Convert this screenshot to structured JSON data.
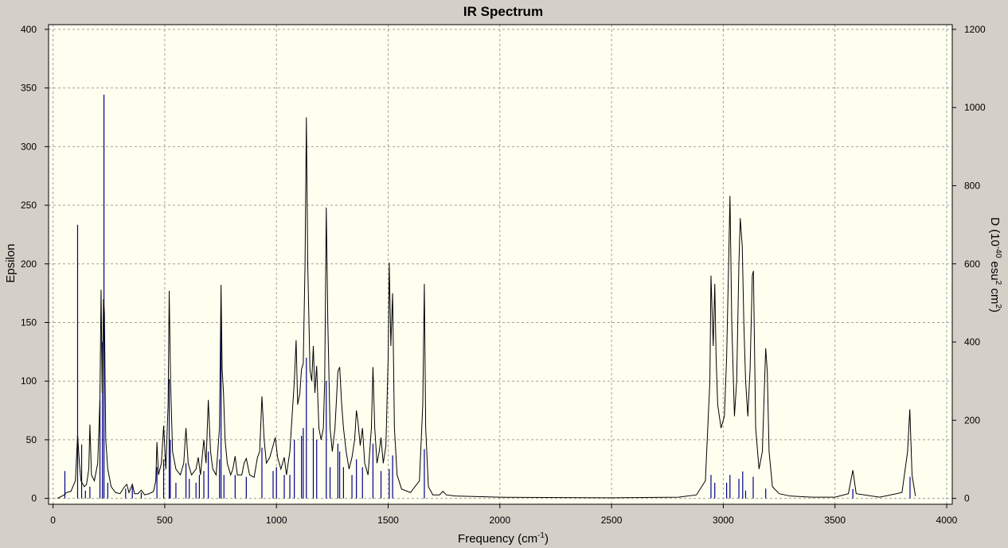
{
  "chart_data": {
    "type": "line",
    "title": "IR Spectrum",
    "x_label": [
      "Frequency (cm",
      "-1",
      ")"
    ],
    "y_label": "Epsilon",
    "y2_label": [
      "D (10",
      "-40",
      " esu",
      "2",
      " cm",
      "2",
      ")"
    ],
    "xlim": [
      -20,
      4025
    ],
    "ylim": [
      -5,
      404
    ],
    "y2lim": [
      -15,
      1212
    ],
    "xticks": [
      0,
      500,
      1000,
      1500,
      2000,
      2500,
      3000,
      3500,
      4000
    ],
    "yticks": [
      0,
      50,
      100,
      150,
      200,
      250,
      300,
      350,
      400
    ],
    "y2ticks": [
      0,
      200,
      400,
      600,
      800,
      1000,
      1200
    ],
    "grid": true,
    "background": "#fffff0",
    "series": [
      {
        "type": "line",
        "color": "#000000",
        "x": [
          20,
          50,
          60,
          80,
          100,
          110,
          118,
          125,
          140,
          150,
          160,
          165,
          172,
          185,
          200,
          210,
          215,
          220,
          226,
          230,
          236,
          245,
          260,
          280,
          300,
          320,
          330,
          340,
          355,
          365,
          380,
          395,
          410,
          430,
          450,
          460,
          465,
          472,
          485,
          495,
          505,
          515,
          520,
          526,
          535,
          550,
          570,
          585,
          595,
          605,
          620,
          640,
          650,
          660,
          675,
          685,
          695,
          705,
          715,
          730,
          745,
          752,
          757,
          763,
          770,
          780,
          795,
          805,
          815,
          825,
          845,
          855,
          865,
          880,
          900,
          915,
          925,
          935,
          945,
          955,
          970,
          985,
          995,
          1005,
          1020,
          1035,
          1045,
          1060,
          1070,
          1080,
          1088,
          1095,
          1105,
          1112,
          1120,
          1128,
          1134,
          1140,
          1150,
          1158,
          1165,
          1172,
          1180,
          1190,
          1200,
          1210,
          1216,
          1223,
          1230,
          1240,
          1250,
          1262,
          1275,
          1283,
          1292,
          1300,
          1312,
          1325,
          1338,
          1350,
          1358,
          1365,
          1375,
          1385,
          1395,
          1410,
          1425,
          1432,
          1440,
          1450,
          1460,
          1468,
          1478,
          1490,
          1500,
          1505,
          1512,
          1520,
          1528,
          1540,
          1560,
          1600,
          1640,
          1655,
          1662,
          1668,
          1680,
          1700,
          1730,
          1745,
          1760,
          1800,
          2000,
          2500,
          2800,
          2880,
          2920,
          2940,
          2945,
          2955,
          2962,
          2968,
          2975,
          2990,
          3005,
          3015,
          3025,
          3030,
          3038,
          3050,
          3060,
          3070,
          3076,
          3085,
          3092,
          3100,
          3110,
          3120,
          3130,
          3135,
          3145,
          3160,
          3175,
          3185,
          3190,
          3197,
          3205,
          3220,
          3250,
          3300,
          3400,
          3500,
          3560,
          3580,
          3595,
          3700,
          3800,
          3825,
          3835,
          3845,
          3860
        ],
        "values": [
          0,
          3,
          5,
          6,
          15,
          54,
          30,
          15,
          10,
          12,
          25,
          63,
          20,
          15,
          30,
          85,
          178,
          90,
          170,
          158,
          50,
          25,
          10,
          5,
          4,
          10,
          12,
          5,
          12,
          4,
          4,
          7,
          3,
          4,
          6,
          15,
          48,
          20,
          30,
          62,
          25,
          80,
          177,
          100,
          40,
          25,
          20,
          30,
          60,
          30,
          20,
          25,
          35,
          20,
          50,
          30,
          84,
          40,
          25,
          20,
          60,
          182,
          110,
          90,
          50,
          30,
          20,
          25,
          36,
          20,
          20,
          30,
          34,
          20,
          18,
          35,
          40,
          87,
          50,
          30,
          35,
          45,
          52,
          35,
          25,
          35,
          20,
          40,
          70,
          100,
          135,
          80,
          90,
          110,
          115,
          200,
          325,
          200,
          110,
          100,
          130,
          90,
          113,
          60,
          50,
          60,
          100,
          248,
          150,
          60,
          40,
          60,
          108,
          112,
          80,
          60,
          40,
          25,
          35,
          50,
          75,
          65,
          45,
          60,
          30,
          20,
          60,
          112,
          60,
          30,
          40,
          52,
          30,
          45,
          120,
          201,
          130,
          175,
          60,
          20,
          8,
          5,
          15,
          80,
          183,
          60,
          10,
          3,
          3,
          6,
          3,
          2,
          1,
          0.5,
          1,
          3,
          15,
          100,
          190,
          130,
          183,
          120,
          80,
          60,
          70,
          120,
          210,
          258,
          150,
          70,
          100,
          200,
          239,
          215,
          150,
          100,
          70,
          110,
          190,
          194,
          60,
          25,
          40,
          100,
          128,
          108,
          40,
          10,
          4,
          2,
          1,
          1,
          4,
          24,
          4,
          1,
          5,
          40,
          76,
          20,
          2
        ]
      },
      {
        "type": "stick",
        "axis": "y2",
        "color": "#00008b",
        "x": [
          53,
          110,
          128,
          145,
          165,
          210,
          221,
          228,
          245,
          325,
          355,
          395,
          465,
          495,
          520,
          525,
          550,
          595,
          610,
          640,
          655,
          675,
          695,
          745,
          752,
          765,
          815,
          865,
          935,
          985,
          1000,
          1035,
          1060,
          1080,
          1112,
          1120,
          1134,
          1165,
          1180,
          1223,
          1240,
          1275,
          1283,
          1300,
          1338,
          1358,
          1385,
          1432,
          1468,
          1505,
          1520,
          1662,
          2945,
          2962,
          3015,
          3030,
          3070,
          3087,
          3100,
          3134,
          3190,
          3580,
          3836
        ],
        "values": [
          70,
          700,
          138,
          20,
          30,
          250,
          400,
          1033,
          40,
          25,
          30,
          15,
          80,
          100,
          305,
          150,
          40,
          90,
          50,
          40,
          60,
          70,
          120,
          100,
          472,
          60,
          60,
          55,
          130,
          70,
          80,
          60,
          60,
          150,
          160,
          180,
          360,
          180,
          150,
          300,
          80,
          140,
          120,
          80,
          60,
          100,
          80,
          140,
          70,
          75,
          110,
          126,
          60,
          40,
          40,
          60,
          50,
          69,
          20,
          55,
          25,
          24,
          55
        ]
      }
    ]
  }
}
